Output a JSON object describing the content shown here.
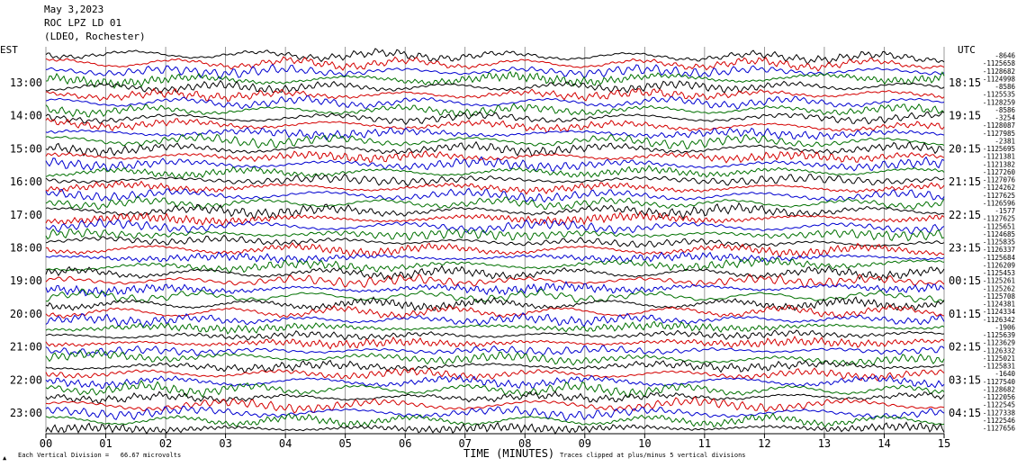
{
  "header": {
    "date": "May 3,2023",
    "station": "ROC LPZ LD 01",
    "network": "(LDEO, Rochester)"
  },
  "left_zone": "EST",
  "right_zone": "UTC",
  "footer": {
    "xlabel": "TIME (MINUTES)",
    "scale_note": "Each Vertical Division =   66.67 microvolts",
    "clip_note": "Traces clipped at plus/minus 5 vertical divisions"
  },
  "colors": {
    "trace": [
      "#000000",
      "#d40000",
      "#0000d0",
      "#007000"
    ],
    "grid": "#808080"
  },
  "chart_data": {
    "type": "line",
    "x_ticks": [
      "00",
      "01",
      "02",
      "03",
      "04",
      "05",
      "06",
      "07",
      "08",
      "09",
      "10",
      "11",
      "12",
      "13",
      "14",
      "15"
    ],
    "xlim": [
      0,
      15
    ],
    "rows_per_hour": 4,
    "left_hour_labels": [
      "13:00",
      "14:00",
      "15:00",
      "16:00",
      "17:00",
      "18:00",
      "19:00",
      "20:00",
      "21:00",
      "22:00",
      "23:00"
    ],
    "right_hour_labels": [
      "18:15",
      "19:15",
      "20:15",
      "21:15",
      "22:15",
      "23:15",
      "00:15",
      "01:15",
      "02:15",
      "03:15",
      "04:15"
    ],
    "trace_offsets": [
      "-8646",
      "-1125658",
      "-1128682",
      "-1124998",
      "-8586",
      "-1125535",
      "-1128259",
      "-8586",
      "-3254",
      "-1128087",
      "-1127985",
      "-2381",
      "-1125695",
      "-1121381",
      "-1121382",
      "-1127260",
      "-1127076",
      "-1124262",
      "-1127625",
      "-1126596",
      "-1577",
      "-1127625",
      "-1125651",
      "-1124685",
      "-1125835",
      "-1126337",
      "-1125684",
      "-1126209",
      "-1125453",
      "-1125261",
      "-1125262",
      "-1125708",
      "-1124381",
      "-1124334",
      "-1126342",
      "-1906",
      "-1125639",
      "-1123629",
      "-1126332",
      "-1125021",
      "-1125831",
      "-1640",
      "-1127540",
      "-1128682",
      "-1122056",
      "-1122545",
      "-1127338",
      "-1122546",
      "-1127656"
    ]
  }
}
